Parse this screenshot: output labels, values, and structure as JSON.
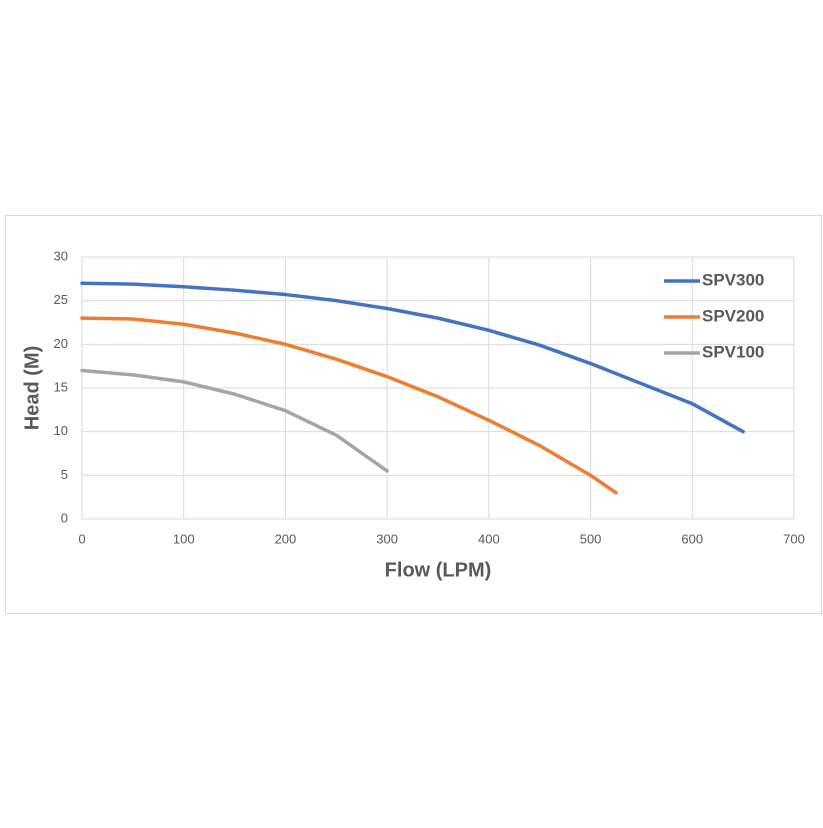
{
  "chart_data": {
    "type": "line",
    "xlabel": "Flow (LPM)",
    "ylabel": "Head (M)",
    "xlim": [
      0,
      700
    ],
    "xticks": [
      0,
      100,
      200,
      300,
      400,
      500,
      600,
      700
    ],
    "ylim": [
      0,
      30
    ],
    "yticks": [
      0,
      5,
      10,
      15,
      20,
      25,
      30
    ],
    "grid": true,
    "legend": "upper right",
    "series": [
      {
        "name": "SPV300",
        "color": "#4472c4",
        "x": [
          0,
          50,
          100,
          150,
          200,
          250,
          300,
          350,
          400,
          450,
          500,
          550,
          600,
          650
        ],
        "values": [
          27,
          26.9,
          26.6,
          26.2,
          25.7,
          25.0,
          24.1,
          23.0,
          21.6,
          19.9,
          17.8,
          15.5,
          13.2,
          10
        ]
      },
      {
        "name": "SPV200",
        "color": "#ed7d31",
        "x": [
          0,
          50,
          100,
          150,
          200,
          250,
          300,
          350,
          400,
          450,
          500,
          525
        ],
        "values": [
          23,
          22.9,
          22.3,
          21.3,
          20.0,
          18.3,
          16.3,
          14.0,
          11.3,
          8.4,
          5.0,
          3.0
        ]
      },
      {
        "name": "SPV100",
        "color": "#a5a5a5",
        "x": [
          0,
          50,
          100,
          150,
          200,
          250,
          300
        ],
        "values": [
          17,
          16.5,
          15.7,
          14.3,
          12.4,
          9.6,
          5.5
        ]
      }
    ]
  }
}
